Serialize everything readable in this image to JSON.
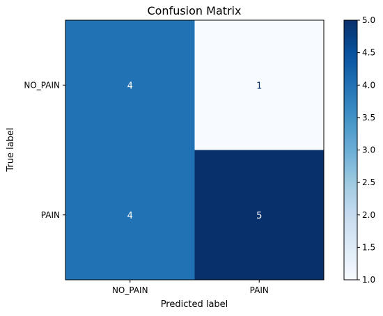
{
  "chart_data": {
    "type": "heatmap",
    "title": "Confusion Matrix",
    "xlabel": "Predicted label",
    "ylabel": "True label",
    "x_categories": [
      "NO_PAIN",
      "PAIN"
    ],
    "y_categories": [
      "NO_PAIN",
      "PAIN"
    ],
    "values": [
      [
        4,
        1
      ],
      [
        4,
        5
      ]
    ],
    "colormap": "Blues",
    "vmin": 1.0,
    "vmax": 5.0,
    "colorbar_ticks": [
      "1.0",
      "1.5",
      "2.0",
      "2.5",
      "3.0",
      "3.5",
      "4.0",
      "4.5",
      "5.0"
    ],
    "grid": false
  }
}
